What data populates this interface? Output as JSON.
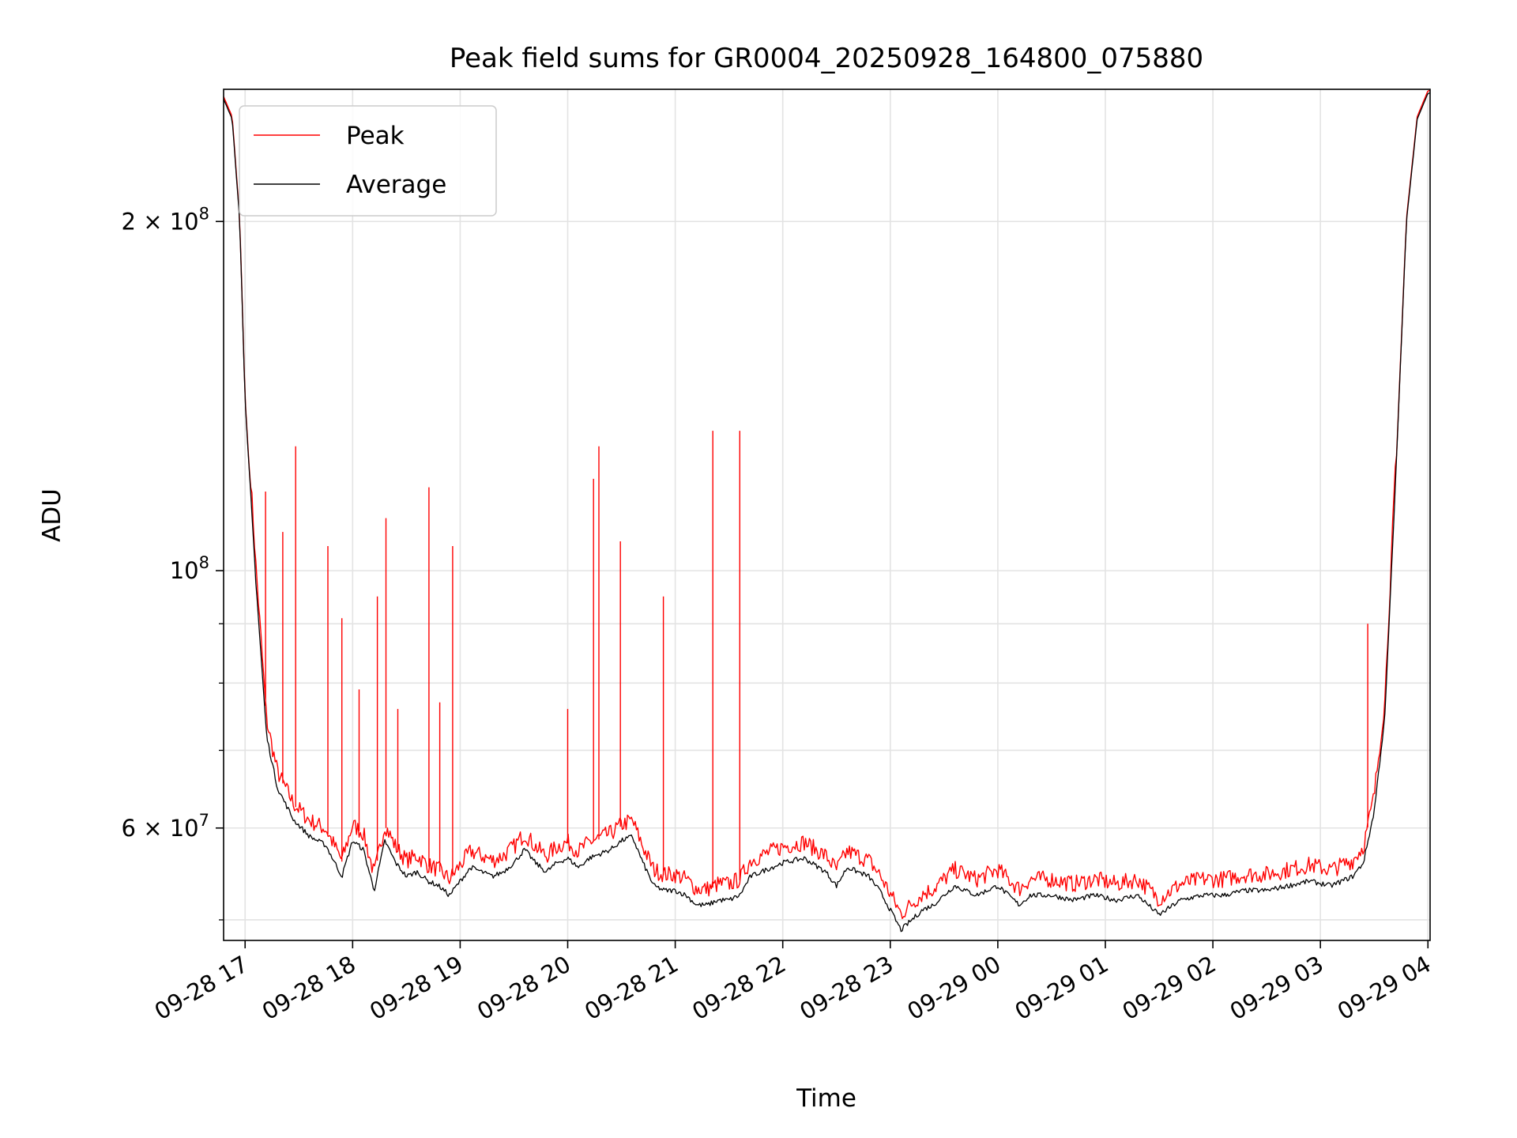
{
  "chart_data": {
    "type": "line",
    "title": "Peak field sums for GR0004_20250928_164800_075880",
    "xlabel": "Time",
    "ylabel": "ADU",
    "yscale": "log",
    "ylim": [
      48000000,
      260000000
    ],
    "xlim_hours": [
      -0.2,
      11.02
    ],
    "grid": true,
    "legend": {
      "placement": "top-left",
      "entries": [
        "Peak",
        "Average"
      ]
    },
    "x_ticks": [
      {
        "h": 0,
        "label": "09-28 17"
      },
      {
        "h": 1,
        "label": "09-28 18"
      },
      {
        "h": 2,
        "label": "09-28 19"
      },
      {
        "h": 3,
        "label": "09-28 20"
      },
      {
        "h": 4,
        "label": "09-28 21"
      },
      {
        "h": 5,
        "label": "09-28 22"
      },
      {
        "h": 6,
        "label": "09-28 23"
      },
      {
        "h": 7,
        "label": "09-29 00"
      },
      {
        "h": 8,
        "label": "09-29 01"
      },
      {
        "h": 9,
        "label": "09-29 02"
      },
      {
        "h": 10,
        "label": "09-29 03"
      },
      {
        "h": 11,
        "label": "09-29 04"
      }
    ],
    "y_ticks_major": [
      {
        "v": 60000000,
        "base": "6 × 10",
        "exp": "7"
      },
      {
        "v": 100000000,
        "base": "10",
        "exp": "8"
      },
      {
        "v": 200000000,
        "base": "2 × 10",
        "exp": "8"
      }
    ],
    "y_ticks_minor": [
      50000000,
      70000000,
      80000000,
      90000000
    ],
    "series": [
      {
        "name": "Average",
        "color": "#000000",
        "hours": [
          -0.2,
          -0.12,
          -0.05,
          0.0,
          0.1,
          0.2,
          0.3,
          0.45,
          0.6,
          0.75,
          0.9,
          1.0,
          1.1,
          1.2,
          1.3,
          1.4,
          1.5,
          1.6,
          1.7,
          1.8,
          1.9,
          2.0,
          2.1,
          2.2,
          2.3,
          2.4,
          2.5,
          2.6,
          2.7,
          2.8,
          2.9,
          3.0,
          3.1,
          3.2,
          3.3,
          3.4,
          3.5,
          3.6,
          3.7,
          3.8,
          3.9,
          4.0,
          4.1,
          4.2,
          4.3,
          4.4,
          4.5,
          4.6,
          4.7,
          4.8,
          4.9,
          5.0,
          5.2,
          5.4,
          5.5,
          5.6,
          5.8,
          5.9,
          6.0,
          6.1,
          6.2,
          6.3,
          6.4,
          6.5,
          6.6,
          6.8,
          7.0,
          7.2,
          7.3,
          7.5,
          7.7,
          7.9,
          8.1,
          8.3,
          8.5,
          8.7,
          8.9,
          9.1,
          9.3,
          9.5,
          9.7,
          9.9,
          10.1,
          10.3,
          10.4,
          10.5,
          10.6,
          10.7,
          10.8,
          10.9,
          11.0
        ],
        "values": [
          255000000,
          245000000,
          200000000,
          140000000,
          98000000,
          72000000,
          65000000,
          61000000,
          59000000,
          58000000,
          54500000,
          58500000,
          57500000,
          53000000,
          58500000,
          56000000,
          54500000,
          55000000,
          54000000,
          53500000,
          52500000,
          54000000,
          55500000,
          55000000,
          54500000,
          55000000,
          56000000,
          57500000,
          56000000,
          55000000,
          56000000,
          56500000,
          55500000,
          56500000,
          57000000,
          57500000,
          58500000,
          59000000,
          56000000,
          53500000,
          53000000,
          53000000,
          52500000,
          51500000,
          51500000,
          52000000,
          52000000,
          52500000,
          54500000,
          55000000,
          55500000,
          56000000,
          56500000,
          55000000,
          53500000,
          55500000,
          54500000,
          53000000,
          51000000,
          49000000,
          50000000,
          51000000,
          51500000,
          52500000,
          53500000,
          52500000,
          53500000,
          51500000,
          52500000,
          52500000,
          52000000,
          52500000,
          52000000,
          52500000,
          50500000,
          52000000,
          52500000,
          52500000,
          53000000,
          53000000,
          53500000,
          54000000,
          53500000,
          54500000,
          56000000,
          62000000,
          75000000,
          120000000,
          200000000,
          245000000,
          258000000
        ]
      },
      {
        "name": "Peak",
        "color": "#ff0000",
        "spikes": [
          {
            "h": 0.19,
            "v": 117000000
          },
          {
            "h": 0.35,
            "v": 108000000
          },
          {
            "h": 0.47,
            "v": 128000000
          },
          {
            "h": 0.77,
            "v": 105000000
          },
          {
            "h": 0.9,
            "v": 91000000
          },
          {
            "h": 1.06,
            "v": 79000000
          },
          {
            "h": 1.23,
            "v": 95000000
          },
          {
            "h": 1.31,
            "v": 111000000
          },
          {
            "h": 1.42,
            "v": 76000000
          },
          {
            "h": 1.71,
            "v": 118000000
          },
          {
            "h": 1.81,
            "v": 77000000
          },
          {
            "h": 1.93,
            "v": 105000000
          },
          {
            "h": 3.0,
            "v": 76000000
          },
          {
            "h": 3.24,
            "v": 120000000
          },
          {
            "h": 3.29,
            "v": 128000000
          },
          {
            "h": 3.49,
            "v": 106000000
          },
          {
            "h": 3.89,
            "v": 95000000
          },
          {
            "h": 4.35,
            "v": 132000000
          },
          {
            "h": 4.6,
            "v": 132000000
          },
          {
            "h": 10.44,
            "v": 90000000
          }
        ]
      }
    ]
  }
}
